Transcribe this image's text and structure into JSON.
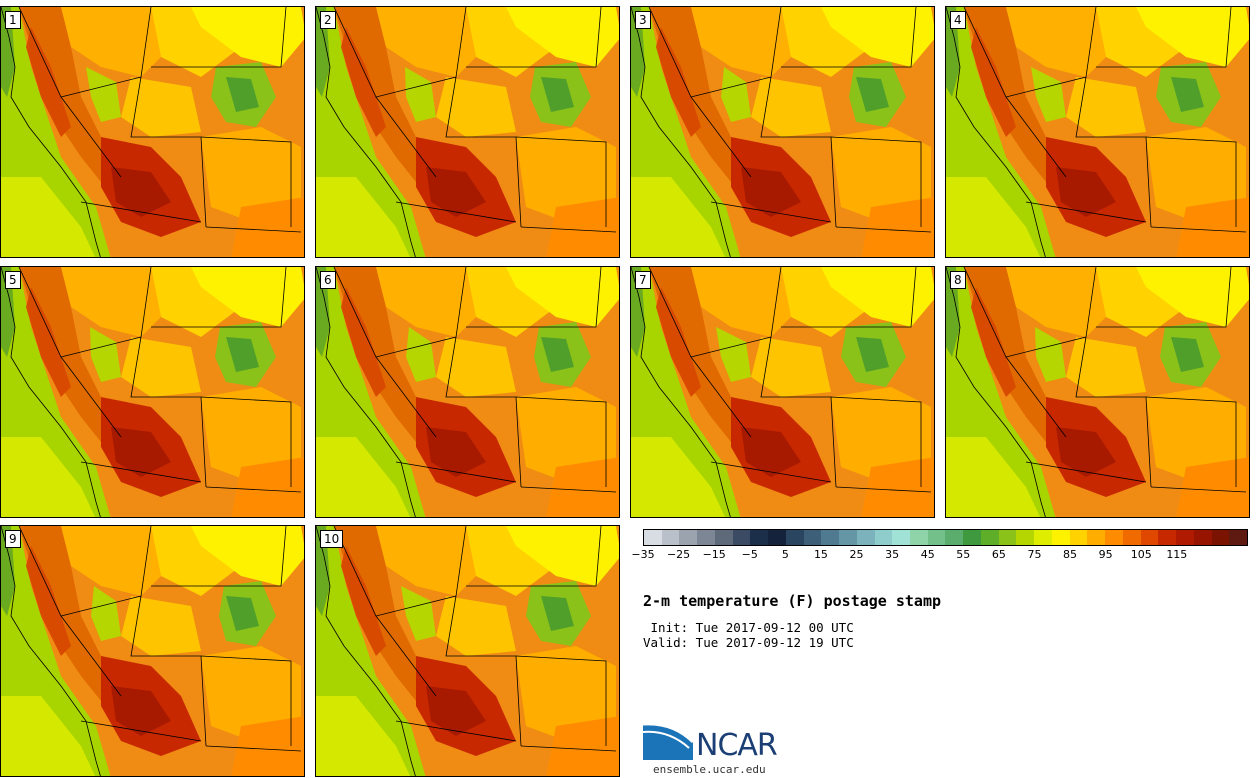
{
  "stamps": [
    {
      "label": "1"
    },
    {
      "label": "2"
    },
    {
      "label": "3"
    },
    {
      "label": "4"
    },
    {
      "label": "5"
    },
    {
      "label": "6"
    },
    {
      "label": "7"
    },
    {
      "label": "8"
    },
    {
      "label": "9"
    },
    {
      "label": "10"
    }
  ],
  "colorbar": {
    "colors": [
      "#d8dde3",
      "#b9c0c9",
      "#9aa3ae",
      "#7c8694",
      "#5e6a7a",
      "#3a4b63",
      "#1b2e4a",
      "#14233b",
      "#2a4560",
      "#3d5f78",
      "#507a8f",
      "#6596a6",
      "#7bb2bc",
      "#8fcccc",
      "#a0e2d6",
      "#8fd3a8",
      "#73c08a",
      "#5aad6d",
      "#3f9a3f",
      "#5fae2a",
      "#8ac21a",
      "#b5d600",
      "#dfee00",
      "#fff200",
      "#ffd200",
      "#ffae00",
      "#ff8c00",
      "#f06a00",
      "#e04800",
      "#c82800",
      "#b01a00",
      "#961400",
      "#7a1400",
      "#5e1a10"
    ],
    "tick_labels": [
      "−35",
      "−25",
      "−15",
      "−5",
      "5",
      "15",
      "25",
      "35",
      "45",
      "55",
      "65",
      "75",
      "85",
      "95",
      "105",
      "115"
    ]
  },
  "title": "2-m temperature (F) postage stamp",
  "init_text": " Init: Tue 2017-09-12 00 UTC",
  "valid_text": "Valid: Tue 2017-09-12 19 UTC",
  "logo": {
    "name": "NCAR",
    "url": "ensemble.ucar.edu"
  }
}
